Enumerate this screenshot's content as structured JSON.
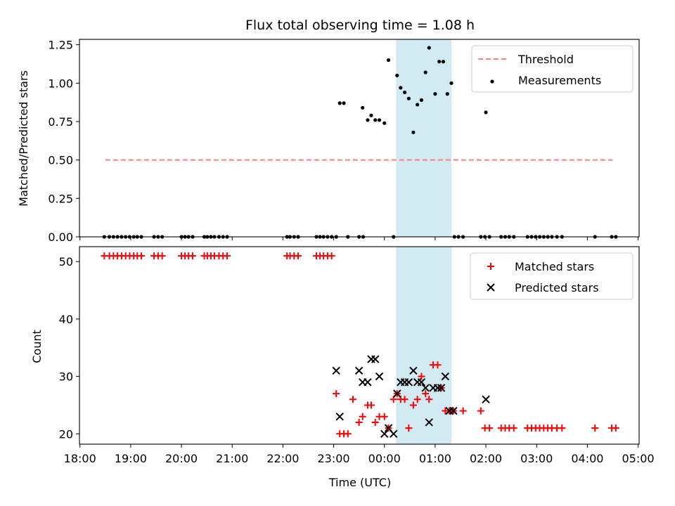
{
  "title": "Flux total observing time = 1.08 h",
  "colors": {
    "threshold": "#ff7f7f",
    "measurement": "#000000",
    "matched": "#ff0000",
    "predicted": "#000000",
    "span": "#add8e6"
  },
  "chart_data": [
    {
      "type": "scatter",
      "ylabel": "Matched/Predicted stars",
      "xlim": [
        17.99,
        29.02
      ],
      "ylim": [
        0.0,
        1.285
      ],
      "yticks": [
        0.0,
        0.25,
        0.5,
        0.75,
        1.0,
        1.25
      ],
      "ytick_labels": [
        "0.00",
        "0.25",
        "0.50",
        "0.75",
        "1.00",
        "1.25"
      ],
      "shaded_span": [
        24.23,
        25.32
      ],
      "legend": {
        "placement": "top-right",
        "entries": [
          "Threshold",
          "Measurements"
        ]
      },
      "series": [
        {
          "name": "Threshold",
          "style": "dashed-line",
          "x": [
            18.5,
            28.5
          ],
          "y": [
            0.5,
            0.5
          ]
        },
        {
          "name": "Measurements",
          "style": "dots",
          "x": [
            18.48,
            18.58,
            18.66,
            18.74,
            18.82,
            18.9,
            18.98,
            19.06,
            19.13,
            19.21,
            19.46,
            19.54,
            19.62,
            20.0,
            20.07,
            20.14,
            20.22,
            20.45,
            20.51,
            20.58,
            20.65,
            20.74,
            20.82,
            20.9,
            22.08,
            22.14,
            22.22,
            22.3,
            22.66,
            22.73,
            22.8,
            22.88,
            22.96,
            23.05,
            23.12,
            23.2,
            23.28,
            23.5,
            23.58,
            23.57,
            23.67,
            23.74,
            23.82,
            23.9,
            24.0,
            24.08,
            24.18,
            24.25,
            24.32,
            24.4,
            24.48,
            24.57,
            24.65,
            24.73,
            24.81,
            24.88,
            25.0,
            25.08,
            25.16,
            25.24,
            25.32,
            25.38,
            25.46,
            25.55,
            25.9,
            25.98,
            26.0,
            26.07,
            26.3,
            26.38,
            26.46,
            26.55,
            26.82,
            26.9,
            26.98,
            27.06,
            27.14,
            27.22,
            27.3,
            27.4,
            27.5,
            28.15,
            28.48,
            28.56
          ],
          "y": [
            0,
            0,
            0,
            0,
            0,
            0,
            0,
            0,
            0,
            0,
            0,
            0,
            0,
            0,
            0,
            0,
            0,
            0,
            0,
            0,
            0,
            0,
            0,
            0,
            0,
            0,
            0,
            0,
            0,
            0,
            0,
            0,
            0,
            0,
            0.87,
            0.87,
            0,
            0,
            0,
            0.84,
            0.76,
            0.79,
            0.76,
            0.76,
            0.74,
            1.15,
            0,
            1.05,
            0.97,
            0.94,
            0.9,
            0.68,
            0.86,
            0.89,
            1.07,
            1.23,
            0.93,
            1.14,
            1.14,
            0.93,
            1.0,
            0,
            0,
            0,
            0,
            0,
            0.81,
            0,
            0,
            0,
            0,
            0,
            0,
            0,
            0,
            0,
            0,
            0,
            0,
            0,
            0,
            0,
            0,
            0
          ]
        }
      ]
    },
    {
      "type": "scatter",
      "xlabel": "Time (UTC)",
      "ylabel": "Count",
      "xlim": [
        17.99,
        29.02
      ],
      "ylim": [
        18.2,
        52.6
      ],
      "yticks": [
        20,
        30,
        40,
        50
      ],
      "ytick_labels": [
        "20",
        "30",
        "40",
        "50"
      ],
      "xticks": [
        18,
        19,
        20,
        21,
        22,
        23,
        24,
        25,
        26,
        27,
        28,
        29
      ],
      "xtick_labels": [
        "18:00",
        "19:00",
        "20:00",
        "21:00",
        "22:00",
        "23:00",
        "00:00",
        "01:00",
        "02:00",
        "03:00",
        "04:00",
        "05:00"
      ],
      "shaded_span": [
        24.23,
        25.32
      ],
      "legend": {
        "placement": "top-right",
        "entries": [
          "Matched stars",
          "Predicted stars"
        ]
      },
      "series": [
        {
          "name": "Matched stars",
          "marker": "plus",
          "x": [
            18.48,
            18.58,
            18.66,
            18.74,
            18.82,
            18.9,
            18.98,
            19.06,
            19.13,
            19.21,
            19.46,
            19.54,
            19.62,
            20.0,
            20.07,
            20.14,
            20.22,
            20.45,
            20.51,
            20.58,
            20.65,
            20.74,
            20.82,
            20.9,
            22.08,
            22.14,
            22.22,
            22.3,
            22.66,
            22.73,
            22.8,
            22.88,
            22.96,
            23.05,
            23.12,
            23.2,
            23.28,
            23.38,
            23.5,
            23.57,
            23.67,
            23.74,
            23.82,
            23.9,
            24.0,
            24.08,
            24.18,
            24.25,
            24.32,
            24.4,
            24.48,
            24.57,
            24.65,
            24.73,
            24.81,
            24.88,
            24.96,
            25.05,
            25.12,
            25.2,
            25.28,
            25.36,
            25.55,
            25.9,
            25.98,
            26.07,
            26.3,
            26.38,
            26.46,
            26.55,
            26.82,
            26.9,
            26.98,
            27.06,
            27.14,
            27.22,
            27.3,
            27.4,
            27.5,
            28.15,
            28.48,
            28.56
          ],
          "y": [
            51,
            51,
            51,
            51,
            51,
            51,
            51,
            51,
            51,
            51,
            51,
            51,
            51,
            51,
            51,
            51,
            51,
            51,
            51,
            51,
            51,
            51,
            51,
            51,
            51,
            51,
            51,
            51,
            51,
            51,
            51,
            51,
            51,
            27,
            20,
            20,
            20,
            26,
            22,
            23,
            25,
            25,
            22,
            23,
            23,
            21,
            26,
            27,
            26,
            26,
            21,
            25,
            26,
            30,
            27,
            26,
            32,
            32,
            28,
            24,
            24,
            24,
            24,
            24,
            21,
            21,
            21,
            21,
            21,
            21,
            21,
            21,
            21,
            21,
            21,
            21,
            21,
            21,
            21,
            21,
            21,
            21
          ]
        },
        {
          "name": "Predicted stars",
          "marker": "x",
          "x": [
            23.05,
            23.12,
            23.5,
            23.57,
            23.67,
            23.74,
            23.82,
            23.9,
            24.0,
            24.08,
            24.18,
            24.25,
            24.32,
            24.4,
            24.48,
            24.57,
            24.65,
            24.73,
            24.81,
            24.88,
            24.96,
            25.05,
            25.12,
            25.2,
            25.28,
            25.36,
            26.0
          ],
          "y": [
            31,
            23,
            31,
            29,
            29,
            33,
            33,
            30,
            20,
            21,
            20,
            27,
            29,
            29,
            29,
            31,
            29,
            29,
            28,
            22,
            28,
            28,
            28,
            30,
            24,
            24,
            26
          ]
        }
      ]
    }
  ]
}
